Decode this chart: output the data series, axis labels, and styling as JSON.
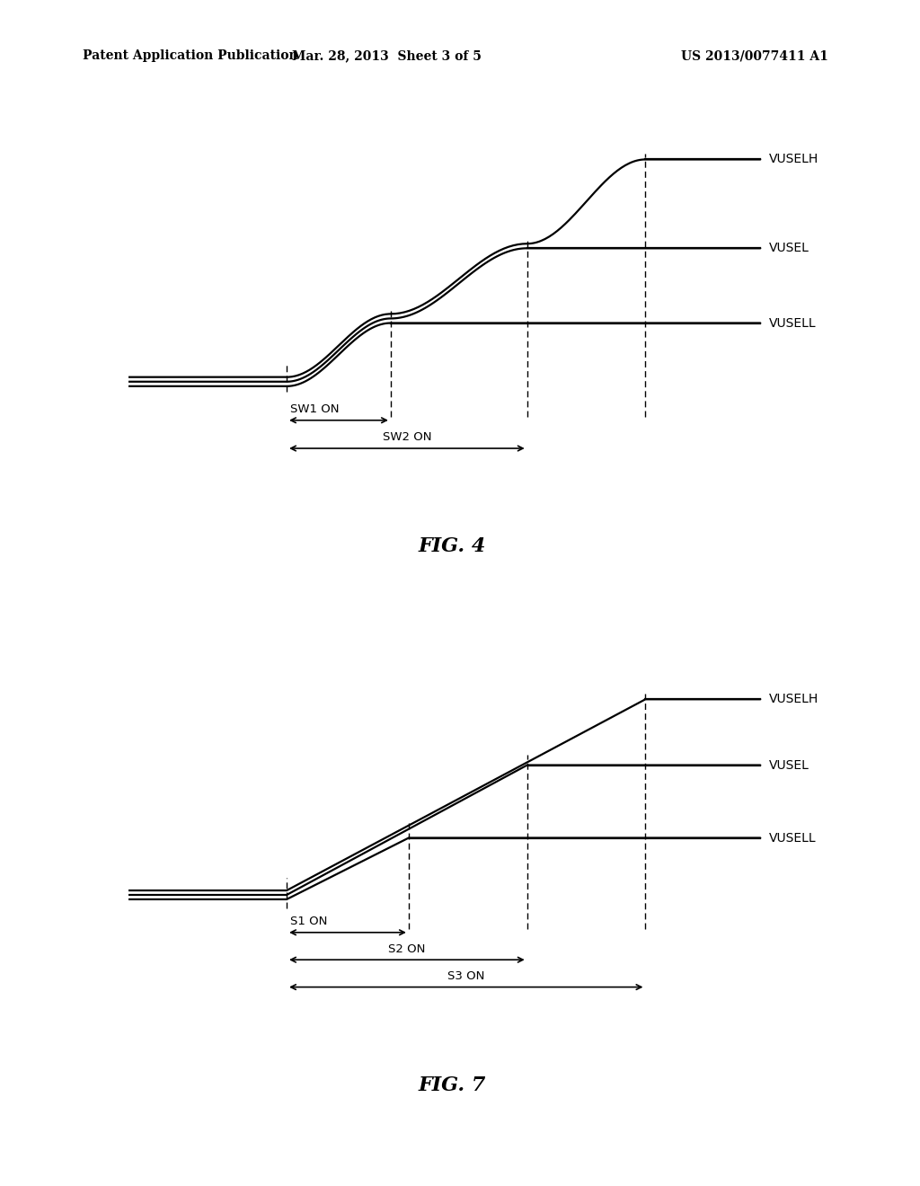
{
  "bg_color": "#ffffff",
  "fig_width": 10.24,
  "fig_height": 13.2,
  "header_left": "Patent Application Publication",
  "header_mid": "Mar. 28, 2013  Sheet 3 of 5",
  "header_right": "US 2013/0077411 A1",
  "header_fontsize": 10,
  "line_color": "#000000",
  "lw_main": 1.6,
  "lw_dash": 1.0,
  "label_fontsize": 10,
  "arrow_fontsize": 9.5,
  "title_fontsize": 16,
  "fig4_title": "FIG. 4",
  "fig7_title": "FIG. 7",
  "vuselh": "VUSELH",
  "vusel": "VUSEL",
  "vusell": "VUSELL",
  "sw1": "SW1 ON",
  "sw2": "SW2 ON",
  "s1": "S1 ON",
  "s2": "S2 ON",
  "s3": "S3 ON"
}
